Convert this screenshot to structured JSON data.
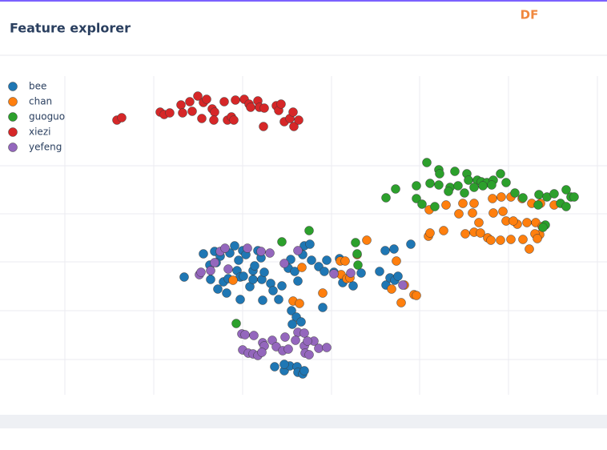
{
  "header": {
    "title": "Feature explorer",
    "logo": "DF"
  },
  "chart_data": {
    "type": "scatter",
    "grid": true,
    "legend": "top-left",
    "xlim": [
      0,
      758
    ],
    "xticks": [
      81,
      192,
      303,
      414,
      524,
      635,
      746
    ],
    "ylim": [
      0,
      398
    ],
    "yticks": [
      44,
      105,
      166,
      226,
      286
    ],
    "series": [
      {
        "name": "bee",
        "color": "#1f77b4",
        "x": [
          230,
          254,
          262,
          268,
          275,
          270,
          263,
          272,
          279,
          283,
          285,
          287,
          293,
          296,
          298,
          300,
          304,
          300,
          303,
          307,
          312,
          316,
          316,
          318,
          322,
          326,
          327,
          328,
          330,
          338,
          341,
          348,
          352,
          360,
          363,
          368,
          372,
          380,
          387,
          378,
          389,
          398,
          405,
          408,
          403,
          417,
          424,
          428,
          441,
          451,
          474,
          481,
          482,
          487,
          492,
          493,
          497,
          513,
          364,
          370,
          376,
          365,
          343,
          355,
          362,
          355,
          371,
          372,
          378,
          380
        ],
        "y": [
          147,
          176,
          162,
          179,
          173,
          165,
          144,
          132,
          141,
          127,
          145,
          177,
          186,
          155,
          168,
          147,
          148,
          119,
          180,
          175,
          135,
          155,
          144,
          161,
          180,
          171,
          144,
          118,
          153,
          139,
          130,
          119,
          136,
          158,
          169,
          154,
          142,
          186,
          188,
          175,
          168,
          160,
          154,
          168,
          109,
          153,
          170,
          140,
          136,
          152,
          154,
          180,
          137,
          146,
          182,
          143,
          148,
          188,
          105,
          97,
          91,
          88,
          35,
          30,
          36,
          38,
          35,
          28,
          26,
          30
        ]
      },
      {
        "name": "chan",
        "color": "#ff7f0e",
        "x": [
          536,
          557,
          578,
          592,
          615,
          626,
          638,
          652,
          664,
          675,
          692,
          573,
          590,
          598,
          616,
          628,
          646,
          632,
          641,
          658,
          669,
          677,
          674,
          668,
          535,
          537,
          554,
          581,
          592,
          600,
          609,
          613,
          625,
          638,
          653,
          661,
          671,
          458,
          446,
          425,
          431,
          495,
          377,
          426,
          433,
          437,
          291,
          403,
          366,
          374,
          489,
          505,
          517,
          520,
          501
        ],
        "y": [
          231,
          237,
          239,
          239,
          245,
          247,
          247,
          245,
          239,
          239,
          237,
          226,
          227,
          215,
          227,
          229,
          213,
          217,
          217,
          215,
          215,
          210,
          200,
          201,
          198,
          202,
          205,
          201,
          203,
          202,
          196,
          193,
          193,
          194,
          194,
          182,
          195,
          193,
          175,
          167,
          167,
          167,
          159,
          150,
          145,
          146,
          143,
          127,
          117,
          114,
          132,
          137,
          125,
          124,
          115
        ]
      },
      {
        "name": "guoguo",
        "color": "#2ca02c",
        "x": [
          533,
          548,
          549,
          568,
          583,
          585,
          596,
          601,
          608,
          616,
          625,
          632,
          520,
          537,
          548,
          562,
          572,
          580,
          592,
          603,
          614,
          494,
          482,
          520,
          560,
          643,
          653,
          673,
          683,
          692,
          707,
          713,
          717,
          700,
          707,
          672,
          681,
          678,
          543,
          527,
          386,
          352,
          444,
          446,
          447,
          295
        ],
        "y": [
          290,
          281,
          276,
          279,
          276,
          268,
          268,
          266,
          265,
          268,
          276,
          265,
          261,
          264,
          262,
          259,
          261,
          252,
          259,
          261,
          262,
          257,
          246,
          245,
          254,
          252,
          246,
          250,
          247,
          251,
          256,
          247,
          247,
          239,
          235,
          237,
          212,
          209,
          235,
          238,
          205,
          191,
          190,
          176,
          162,
          89
        ]
      },
      {
        "name": "xiezi",
        "color": "#d62728",
        "x": [
          146,
          152,
          200,
          205,
          212,
          226,
          228,
          237,
          240,
          247,
          252,
          254,
          258,
          265,
          268,
          267,
          280,
          284,
          289,
          292,
          294,
          305,
          311,
          313,
          322,
          324,
          329,
          330,
          345,
          348,
          351,
          355,
          362,
          366,
          367,
          373
        ],
        "y": [
          343,
          346,
          353,
          350,
          352,
          362,
          352,
          366,
          354,
          373,
          345,
          365,
          369,
          357,
          353,
          343,
          366,
          343,
          347,
          343,
          368,
          369,
          363,
          359,
          367,
          359,
          335,
          358,
          361,
          355,
          363,
          341,
          345,
          353,
          335,
          343
        ]
      },
      {
        "name": "yefeng",
        "color": "#9467bd",
        "x": [
          249,
          251,
          263,
          268,
          275,
          281,
          285,
          309,
          326,
          337,
          355,
          372,
          417,
          438,
          503,
          302,
          306,
          317,
          328,
          330,
          340,
          345,
          353,
          360,
          356,
          372,
          380,
          303,
          310,
          316,
          322,
          327,
          369,
          380,
          392,
          398,
          408,
          381,
          386,
          384
        ],
        "y": [
          150,
          153,
          155,
          165,
          179,
          183,
          157,
          183,
          179,
          177,
          164,
          180,
          151,
          152,
          137,
          76,
          75,
          74,
          65,
          61,
          68,
          60,
          55,
          57,
          72,
          78,
          77,
          56,
          52,
          51,
          49,
          53,
          68,
          61,
          67,
          58,
          59,
          52,
          50,
          67
        ]
      }
    ]
  }
}
